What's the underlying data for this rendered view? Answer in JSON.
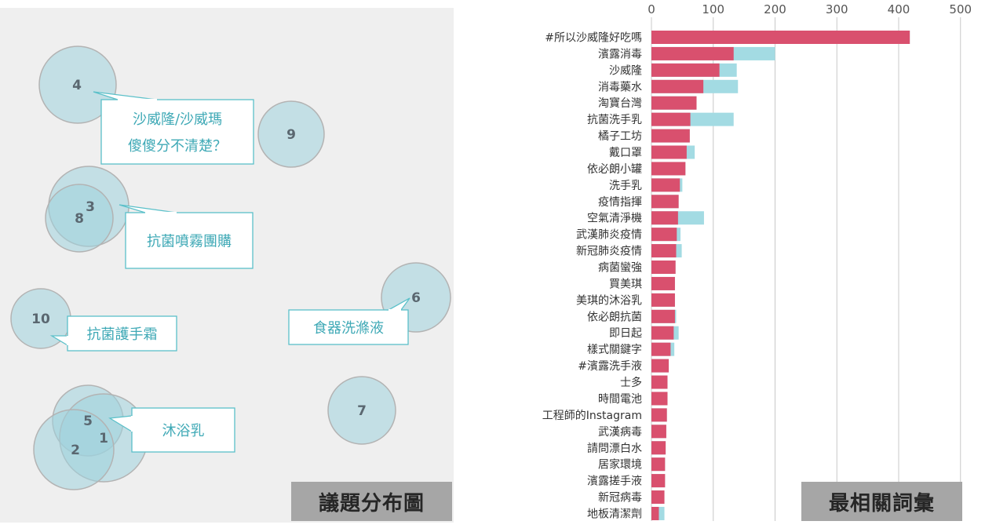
{
  "left": {
    "title": "議題分布圖",
    "circles": [
      {
        "label": "4"
      },
      {
        "label": "9"
      },
      {
        "label": "3"
      },
      {
        "label": "8"
      },
      {
        "label": "10"
      },
      {
        "label": "6"
      },
      {
        "label": "5"
      },
      {
        "label": "1"
      },
      {
        "label": "2"
      },
      {
        "label": "7"
      }
    ],
    "callouts": [
      {
        "lines": [
          "沙威隆/沙威瑪",
          "傻傻分不清楚？"
        ]
      },
      {
        "lines": [
          "抗菌噴霧團購"
        ]
      },
      {
        "lines": [
          "抗菌護手霜"
        ]
      },
      {
        "lines": [
          "食器洗滌液"
        ]
      },
      {
        "lines": [
          "沐浴乳"
        ]
      }
    ]
  },
  "chart_data": {
    "type": "bar",
    "orientation": "horizontal",
    "title": "最相關詞彙",
    "xlim": [
      0,
      500
    ],
    "xticks": [
      0,
      100,
      200,
      300,
      400,
      500
    ],
    "grid": true,
    "colors": {
      "primary": "#d9506e",
      "secondary": "#a3dbe3"
    },
    "categories": [
      "#所以沙威隆好吃嗎",
      "濱露消毒",
      "沙威隆",
      "消毒藥水",
      "淘寶台灣",
      "抗菌洗手乳",
      "橘子工坊",
      "戴口罩",
      "依必朗小罐",
      "洗手乳",
      "疫情指揮",
      "空氣清淨機",
      "武漢肺炎疫情",
      "新冠肺炎疫情",
      "病菌蠻強",
      "買美琪",
      "美琪的沐浴乳",
      "依必朗抗菌",
      "即日起",
      "樣式關鍵字",
      "#濱露洗手液",
      "士多",
      "時間電池",
      "工程師的Instagram",
      "武漢病毒",
      "請問漂白水",
      "居家環境",
      "濱露搓手液",
      "新冠病毒",
      "地板清潔劑"
    ],
    "series": [
      {
        "values": [
          418,
          133,
          110,
          84,
          73,
          63,
          62,
          57,
          55,
          46,
          44,
          43,
          41,
          40,
          39,
          38,
          38,
          38,
          36,
          31,
          28,
          26,
          26,
          25,
          24,
          23,
          22,
          22,
          21,
          12
        ]
      },
      {
        "values": [
          418,
          200,
          138,
          140,
          73,
          133,
          62,
          70,
          55,
          50,
          44,
          85,
          47,
          49,
          39,
          38,
          38,
          40,
          44,
          37,
          28,
          26,
          26,
          25,
          24,
          23,
          22,
          22,
          21,
          21
        ]
      }
    ]
  }
}
